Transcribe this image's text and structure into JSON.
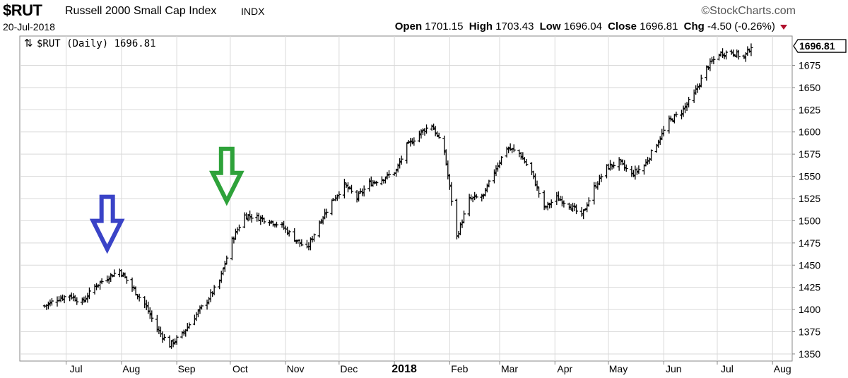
{
  "header": {
    "symbol": "$RUT",
    "name": "Russell 2000 Small Cap Index",
    "exchange": "INDX",
    "date": "20-Jul-2018",
    "brand": "©StockCharts.com",
    "open_label": "Open",
    "open": "1701.15",
    "high_label": "High",
    "high": "1703.43",
    "low_label": "Low",
    "low": "1696.04",
    "close_label": "Close",
    "close": "1696.81",
    "chg_label": "Chg",
    "chg": "-4.50 (-0.26%)",
    "chg_color": "#b0102d"
  },
  "chart_data": {
    "type": "line",
    "style": "ohlc-bars",
    "series_label": "$RUT (Daily) 1696.81",
    "last_value_tag": "1696.81",
    "ylim": [
      1342,
      1708
    ],
    "y_ticks": [
      1350,
      1375,
      1400,
      1425,
      1450,
      1475,
      1500,
      1525,
      1550,
      1575,
      1600,
      1625,
      1650,
      1675
    ],
    "x_ticks": [
      {
        "label": "Jul",
        "date": "2017-07-01"
      },
      {
        "label": "Aug",
        "date": "2017-08-01"
      },
      {
        "label": "Sep",
        "date": "2017-09-01"
      },
      {
        "label": "Oct",
        "date": "2017-10-01"
      },
      {
        "label": "Nov",
        "date": "2017-11-01"
      },
      {
        "label": "Dec",
        "date": "2017-12-01"
      },
      {
        "label": "2018",
        "date": "2018-01-01",
        "bold": true
      },
      {
        "label": "Feb",
        "date": "2018-02-01"
      },
      {
        "label": "Mar",
        "date": "2018-03-01"
      },
      {
        "label": "Apr",
        "date": "2018-04-01"
      },
      {
        "label": "May",
        "date": "2018-05-01"
      },
      {
        "label": "Jun",
        "date": "2018-06-01"
      },
      {
        "label": "Jul",
        "date": "2018-07-01"
      },
      {
        "label": "Aug",
        "date": "2018-08-01"
      }
    ],
    "x": [
      "2017-06-19",
      "2017-06-26",
      "2017-07-03",
      "2017-07-10",
      "2017-07-17",
      "2017-07-24",
      "2017-07-31",
      "2017-08-07",
      "2017-08-14",
      "2017-08-21",
      "2017-08-28",
      "2017-09-04",
      "2017-09-11",
      "2017-09-18",
      "2017-09-25",
      "2017-10-02",
      "2017-10-09",
      "2017-10-16",
      "2017-10-23",
      "2017-10-30",
      "2017-11-06",
      "2017-11-13",
      "2017-11-20",
      "2017-11-27",
      "2017-12-04",
      "2017-12-11",
      "2017-12-18",
      "2017-12-26",
      "2018-01-02",
      "2018-01-08",
      "2018-01-16",
      "2018-01-22",
      "2018-01-29",
      "2018-02-05",
      "2018-02-12",
      "2018-02-20",
      "2018-02-26",
      "2018-03-05",
      "2018-03-12",
      "2018-03-19",
      "2018-03-26",
      "2018-04-02",
      "2018-04-09",
      "2018-04-16",
      "2018-04-23",
      "2018-04-30",
      "2018-05-07",
      "2018-05-14",
      "2018-05-21",
      "2018-05-29",
      "2018-06-04",
      "2018-06-11",
      "2018-06-18",
      "2018-06-25",
      "2018-07-02",
      "2018-07-09",
      "2018-07-16",
      "2018-07-20"
    ],
    "series": [
      {
        "values": [
          1404,
          1412,
          1416,
          1408,
          1426,
          1436,
          1444,
          1425,
          1406,
          1378,
          1360,
          1372,
          1392,
          1410,
          1432,
          1478,
          1506,
          1504,
          1500,
          1494,
          1480,
          1468,
          1498,
          1522,
          1540,
          1526,
          1542,
          1548,
          1556,
          1584,
          1600,
          1608,
          1578,
          1482,
          1524,
          1528,
          1556,
          1582,
          1576,
          1554,
          1514,
          1526,
          1518,
          1505,
          1537,
          1560,
          1566,
          1552,
          1562,
          1590,
          1612,
          1623,
          1642,
          1672,
          1688,
          1690,
          1684,
          1696.81
        ]
      }
    ],
    "annotations": [
      {
        "type": "arrow-down",
        "color": "#3a43c7",
        "date": "2017-07-24",
        "value": 1468
      },
      {
        "type": "arrow-down",
        "color": "#2ea23a",
        "date": "2017-09-29",
        "value": 1522
      }
    ]
  }
}
